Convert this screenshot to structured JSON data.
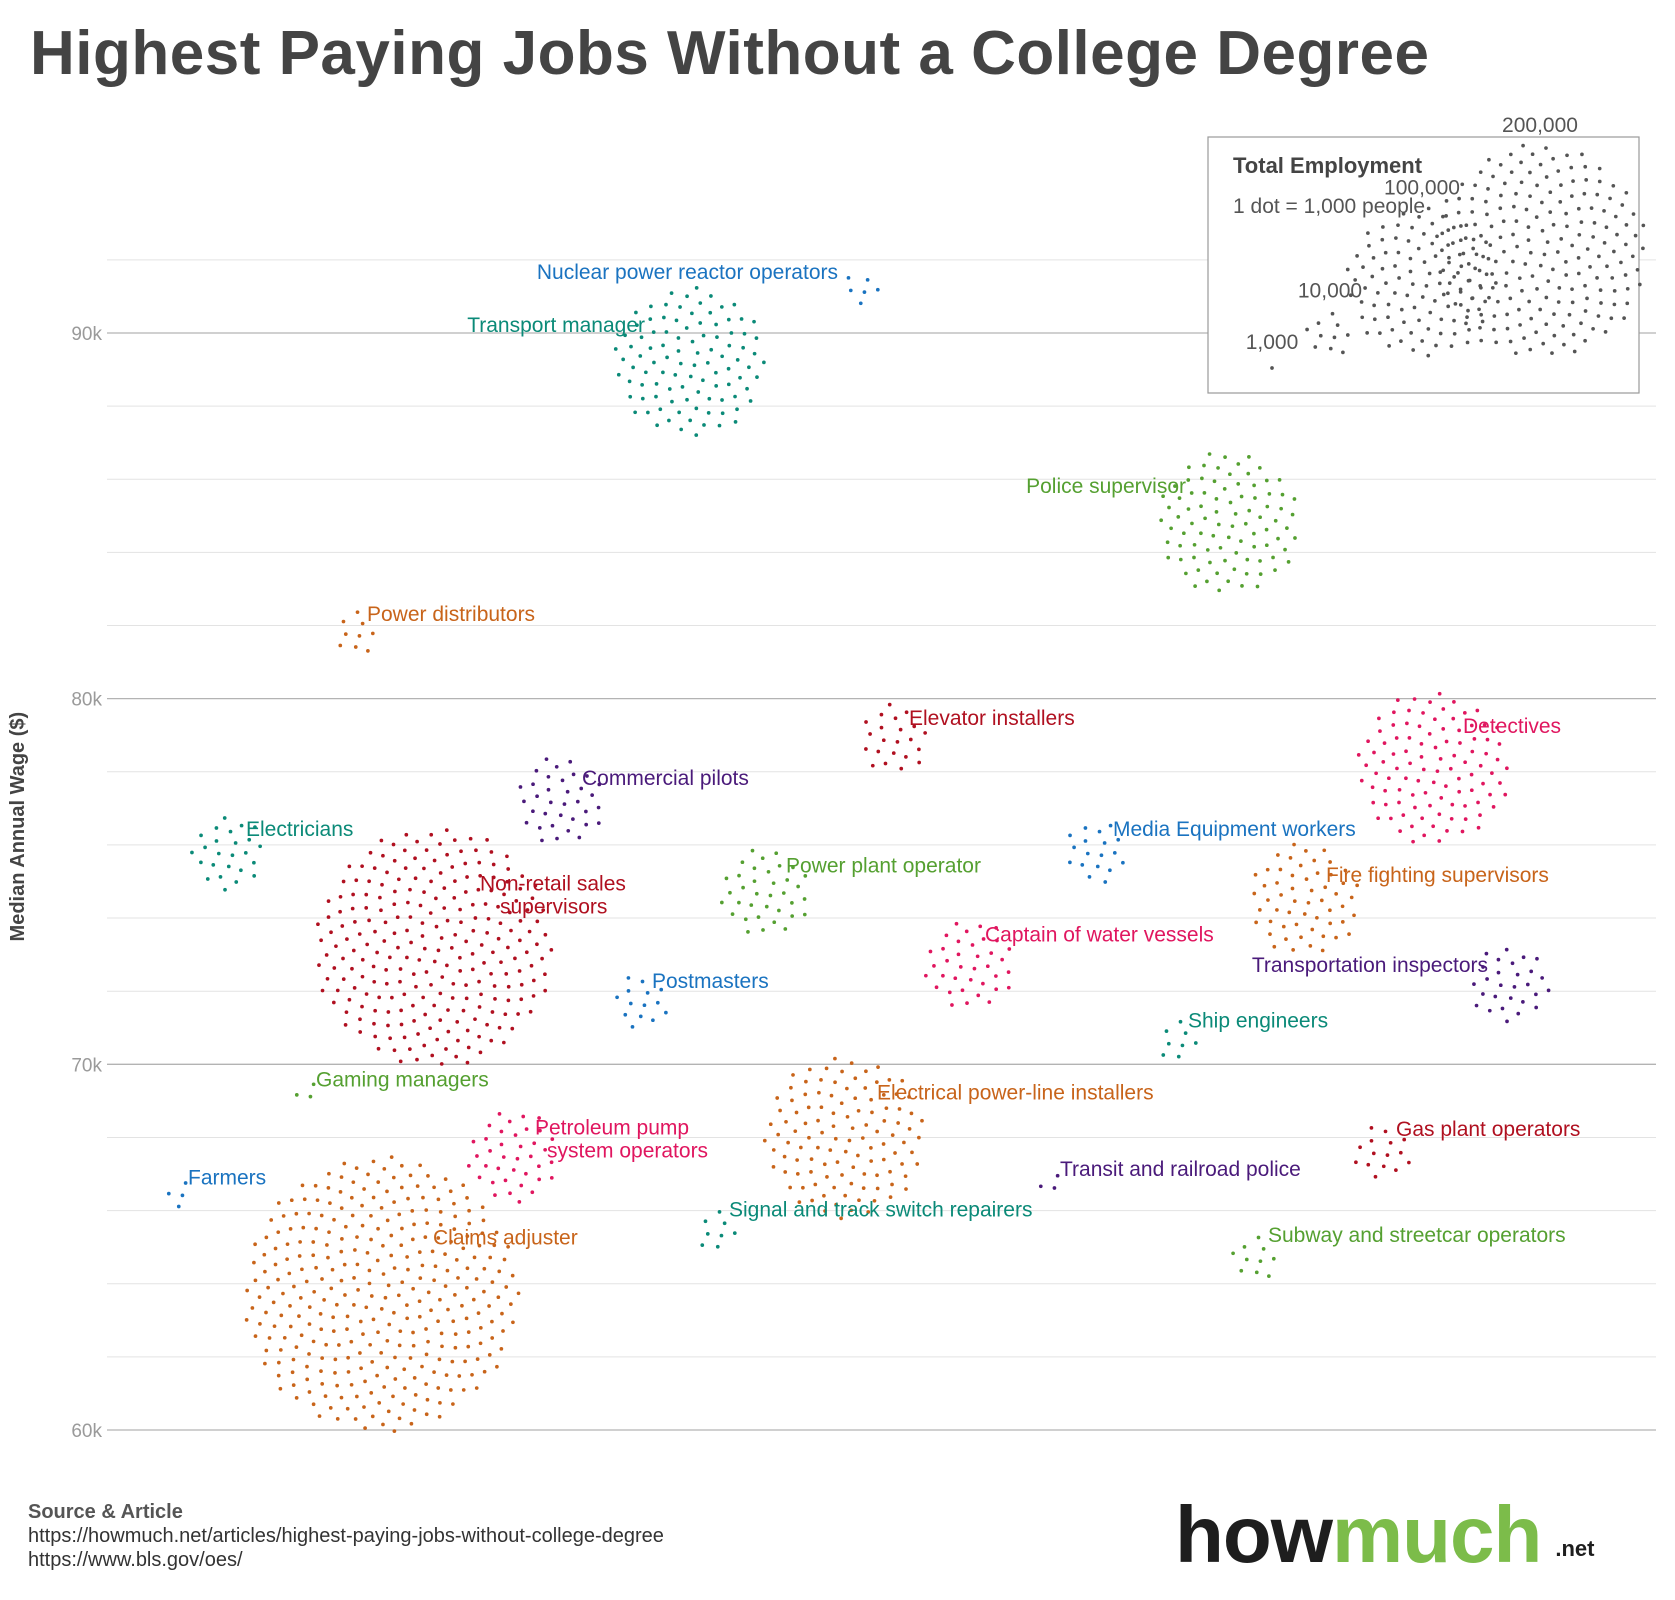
{
  "page": {
    "title": "Highest Paying Jobs Without a College Degree"
  },
  "chart_data": {
    "type": "scatter",
    "title": "Highest Paying Jobs Without a College Degree",
    "ylabel": "Median Annual Wage ($)",
    "xlabel": "",
    "ylim": [
      60000,
      93500
    ],
    "y_ticks": [
      60000,
      70000,
      80000,
      90000
    ],
    "y_tick_labels": [
      "60k",
      "70k",
      "80k",
      "90k"
    ],
    "grid": true,
    "encoding": "1 dot = 1,000 people",
    "points": [
      {
        "label": "Nuclear power reactor operators",
        "wage": 91200,
        "employment": 6000,
        "color": "#1a73c0"
      },
      {
        "label": "Transport manager",
        "wage": 89200,
        "employment": 100000,
        "color": "#0b8a78"
      },
      {
        "label": "Police supervisor",
        "wage": 84800,
        "employment": 90000,
        "color": "#55a031"
      },
      {
        "label": "Power distributors",
        "wage": 81800,
        "employment": 9000,
        "color": "#c8641a"
      },
      {
        "label": "Elevator installers",
        "wage": 78900,
        "employment": 22000,
        "color": "#b01020"
      },
      {
        "label": "Detectives",
        "wage": 78100,
        "employment": 103000,
        "color": "#e0165f"
      },
      {
        "label": "Commercial pilots",
        "wage": 77200,
        "employment": 35000,
        "color": "#4a1a7a"
      },
      {
        "label": "Electricians",
        "wage": 75800,
        "employment": 25000,
        "color": "#0b8a78"
      },
      {
        "label": "Media Equipment workers",
        "wage": 75800,
        "employment": 18000,
        "color": "#1a73c0"
      },
      {
        "label": "Power plant operator",
        "wage": 74700,
        "employment": 36000,
        "color": "#55a031"
      },
      {
        "label": "Fire fighting supervisors",
        "wage": 74500,
        "employment": 56000,
        "color": "#c8641a"
      },
      {
        "label": "Non-retail sales supervisors",
        "wage": 73200,
        "employment": 250000,
        "color": "#b01020"
      },
      {
        "label": "Captain of water vessels",
        "wage": 72700,
        "employment": 37000,
        "color": "#e0165f"
      },
      {
        "label": "Transportation inspectors",
        "wage": 72200,
        "employment": 28000,
        "color": "#4a1a7a"
      },
      {
        "label": "Postmasters",
        "wage": 71700,
        "employment": 14000,
        "color": "#1a73c0"
      },
      {
        "label": "Ship engineers",
        "wage": 70600,
        "employment": 8000,
        "color": "#0b8a78"
      },
      {
        "label": "Gaming managers",
        "wage": 69200,
        "employment": 3000,
        "color": "#55a031"
      },
      {
        "label": "Electrical power-line installers",
        "wage": 68000,
        "employment": 115000,
        "color": "#c8641a"
      },
      {
        "label": "Gas plant operators",
        "wage": 67600,
        "employment": 15000,
        "color": "#b01020"
      },
      {
        "label": "Petroleum pump system operators",
        "wage": 67500,
        "employment": 38000,
        "color": "#e0165f"
      },
      {
        "label": "Transit and railroad police",
        "wage": 66700,
        "employment": 3000,
        "color": "#4a1a7a"
      },
      {
        "label": "Farmers",
        "wage": 66500,
        "employment": 4000,
        "color": "#1a73c0"
      },
      {
        "label": "Signal and track switch repairers",
        "wage": 65400,
        "employment": 8000,
        "color": "#0b8a78"
      },
      {
        "label": "Subway and streetcar operators",
        "wage": 64700,
        "employment": 10000,
        "color": "#55a031"
      },
      {
        "label": "Claims adjuster",
        "wage": 63700,
        "employment": 330000,
        "color": "#c8641a"
      }
    ],
    "legend": {
      "title": "Total Employment",
      "subtitle": "1 dot = 1,000 people",
      "placement": "top-right",
      "color": "#555555",
      "items": [
        {
          "label": "1,000",
          "employment": 1000
        },
        {
          "label": "10,000",
          "employment": 10000
        },
        {
          "label": "100,000",
          "employment": 100000
        },
        {
          "label": "200,000",
          "employment": 200000
        }
      ]
    }
  },
  "footer": {
    "source_heading": "Source & Article",
    "source_lines": [
      "https://howmuch.net/articles/highest-paying-jobs-without-college-degree",
      "https://www.bls.gov/oes/"
    ]
  },
  "brand": {
    "part1": "how",
    "part2": "much",
    "tld": ".net"
  }
}
